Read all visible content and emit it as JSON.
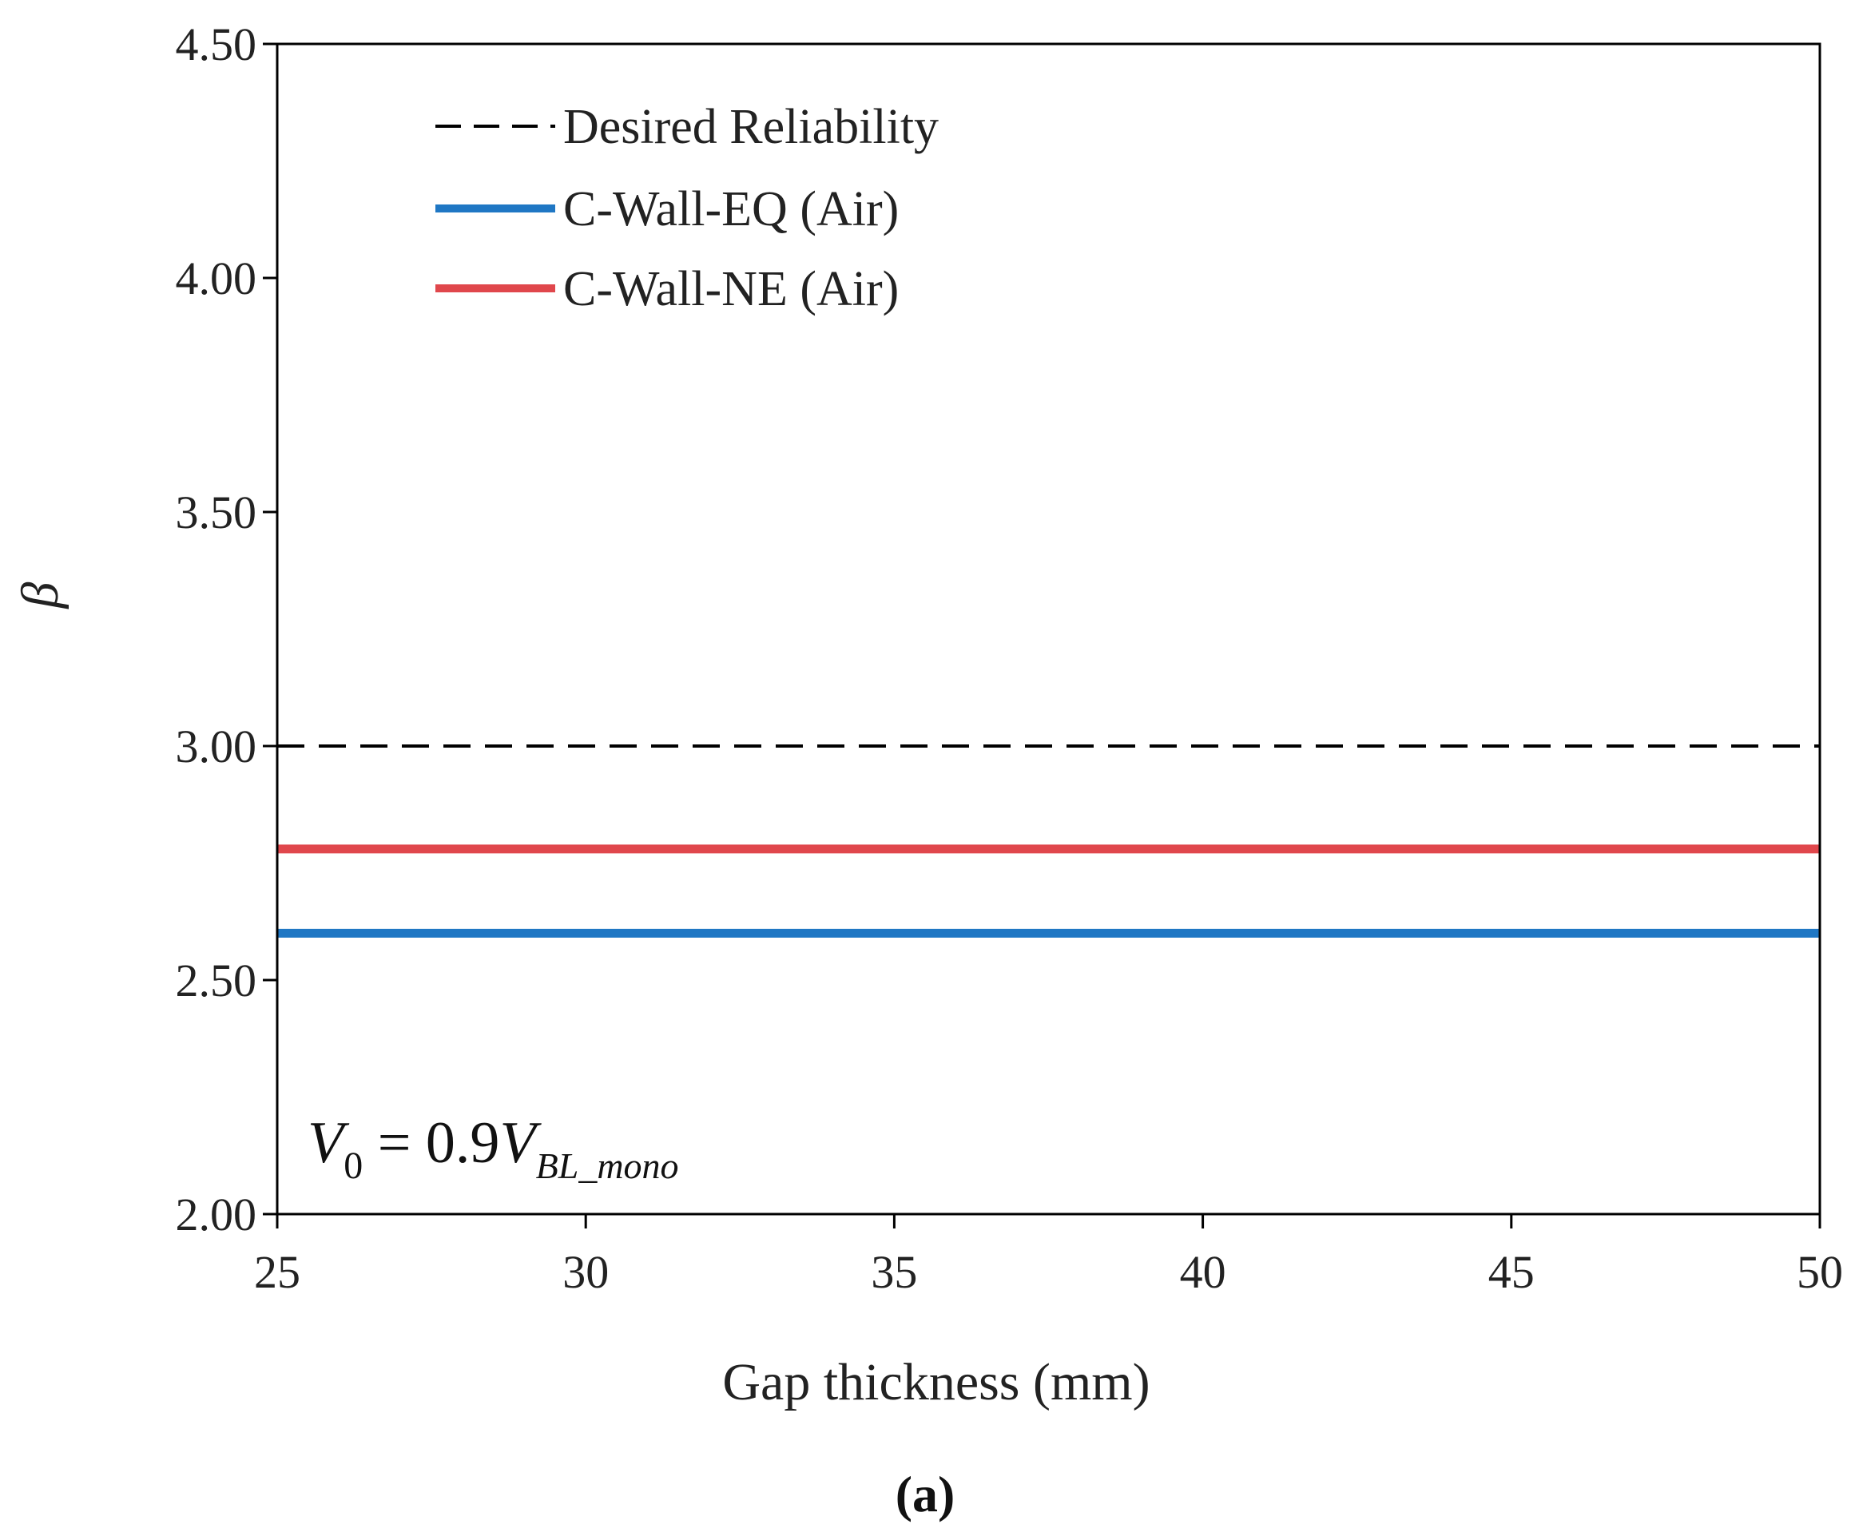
{
  "chart_data": {
    "type": "line",
    "title": "",
    "xlabel": "Gap thickness (mm)",
    "ylabel": "β",
    "xlim": [
      25,
      50
    ],
    "ylim": [
      2.0,
      4.5
    ],
    "xticks": [
      25,
      30,
      35,
      40,
      45,
      50
    ],
    "yticks": [
      2.0,
      2.5,
      3.0,
      3.5,
      4.0,
      4.5
    ],
    "xtick_labels": [
      "25",
      "30",
      "35",
      "40",
      "45",
      "50"
    ],
    "ytick_labels": [
      "2.00",
      "2.50",
      "3.00",
      "3.50",
      "4.00",
      "4.50"
    ],
    "legend_position": "top-left",
    "series": [
      {
        "name": "Desired Reliability",
        "x": [
          25,
          50
        ],
        "y": [
          3.0,
          3.0
        ],
        "color": "#000000",
        "style": "dashed"
      },
      {
        "name": "C-Wall-EQ (Air)",
        "x": [
          25,
          50
        ],
        "y": [
          2.6,
          2.6
        ],
        "color": "#1f77c4",
        "style": "solid"
      },
      {
        "name": "C-Wall-NE (Air)",
        "x": [
          25,
          50
        ],
        "y": [
          2.78,
          2.78
        ],
        "color": "#e0474c",
        "style": "solid"
      }
    ],
    "annotation": {
      "v_symbol": "V",
      "v_sub": "0",
      "equals": " = 0.9",
      "v2_symbol": "V",
      "v2_sub": "BL_mono"
    },
    "panel_label": "(a)"
  }
}
